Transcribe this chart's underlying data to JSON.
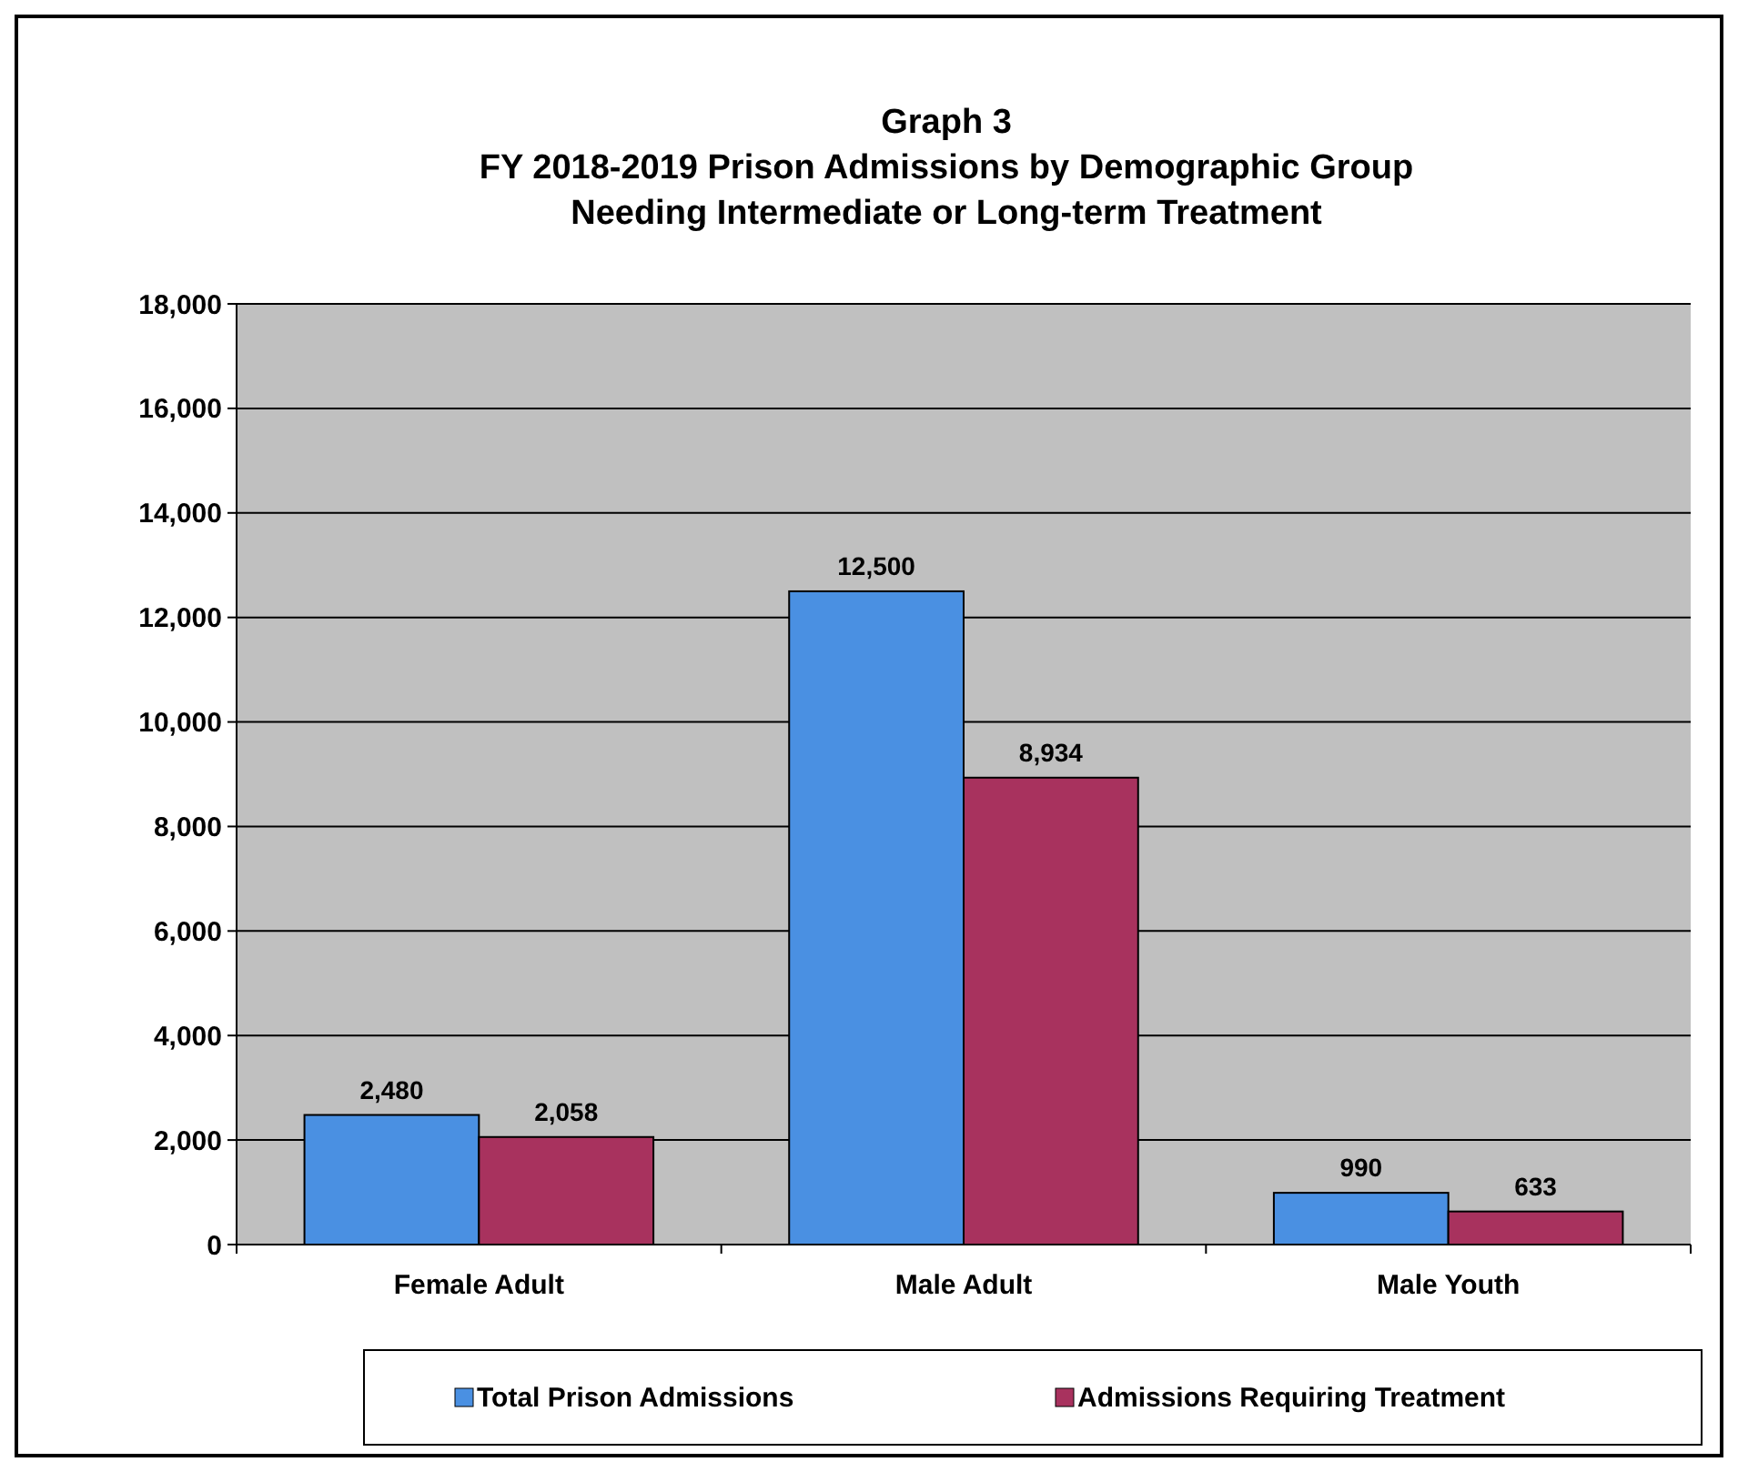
{
  "chart_data": {
    "type": "bar",
    "title": "Graph 3\nFY 2018-2019 Prison Admissions by Demographic Group\nNeeding Intermediate or Long-term Treatment",
    "categories": [
      "Female Adult",
      "Male Adult",
      "Male Youth"
    ],
    "series": [
      {
        "name": "Total Prison Admissions",
        "color": "#4a90e2",
        "values": [
          2480,
          12500,
          990
        ],
        "value_labels": [
          "2,480",
          "12,500",
          "990"
        ]
      },
      {
        "name": "Admissions Requiring Treatment",
        "color": "#a8325e",
        "values": [
          2058,
          8934,
          633
        ],
        "value_labels": [
          "2,058",
          "8,934",
          "633"
        ]
      }
    ],
    "ylim": [
      0,
      18000
    ],
    "yticks": [
      {
        "value": 0,
        "label": "0"
      },
      {
        "value": 2000,
        "label": "2,000"
      },
      {
        "value": 4000,
        "label": "4,000"
      },
      {
        "value": 6000,
        "label": "6,000"
      },
      {
        "value": 8000,
        "label": "8,000"
      },
      {
        "value": 10000,
        "label": "10,000"
      },
      {
        "value": 12000,
        "label": "12,000"
      },
      {
        "value": 14000,
        "label": "14,000"
      },
      {
        "value": 16000,
        "label": "16,000"
      },
      {
        "value": 18000,
        "label": "18,000"
      }
    ],
    "grid": "y",
    "legend": "bottom"
  }
}
